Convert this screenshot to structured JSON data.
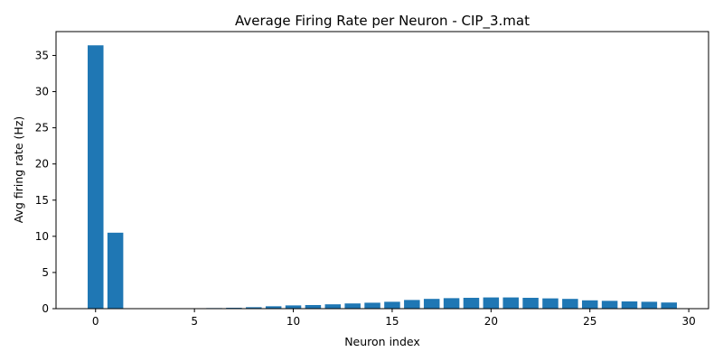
{
  "chart_data": {
    "type": "bar",
    "title": "Average Firing Rate per Neuron - CIP_3.mat",
    "xlabel": "Neuron index",
    "ylabel": "Avg firing rate (Hz)",
    "x": [
      0,
      1,
      2,
      3,
      4,
      5,
      6,
      7,
      8,
      9,
      10,
      11,
      12,
      13,
      14,
      15,
      16,
      17,
      18,
      19,
      20,
      21,
      22,
      23,
      24,
      25,
      26,
      27,
      28,
      29
    ],
    "values": [
      36.4,
      10.5,
      0,
      0,
      0,
      0,
      0.08,
      0.12,
      0.2,
      0.33,
      0.45,
      0.5,
      0.6,
      0.72,
      0.82,
      0.95,
      1.2,
      1.35,
      1.45,
      1.5,
      1.55,
      1.55,
      1.5,
      1.42,
      1.35,
      1.15,
      1.08,
      1.0,
      0.95,
      0.85
    ],
    "xlim": [
      -2,
      31
    ],
    "ylim": [
      0,
      38.3
    ],
    "xticks": [
      0,
      5,
      10,
      15,
      20,
      25,
      30
    ],
    "yticks": [
      0,
      5,
      10,
      15,
      20,
      25,
      30,
      35
    ],
    "bar_color": "#1f77b4",
    "grid": false
  }
}
